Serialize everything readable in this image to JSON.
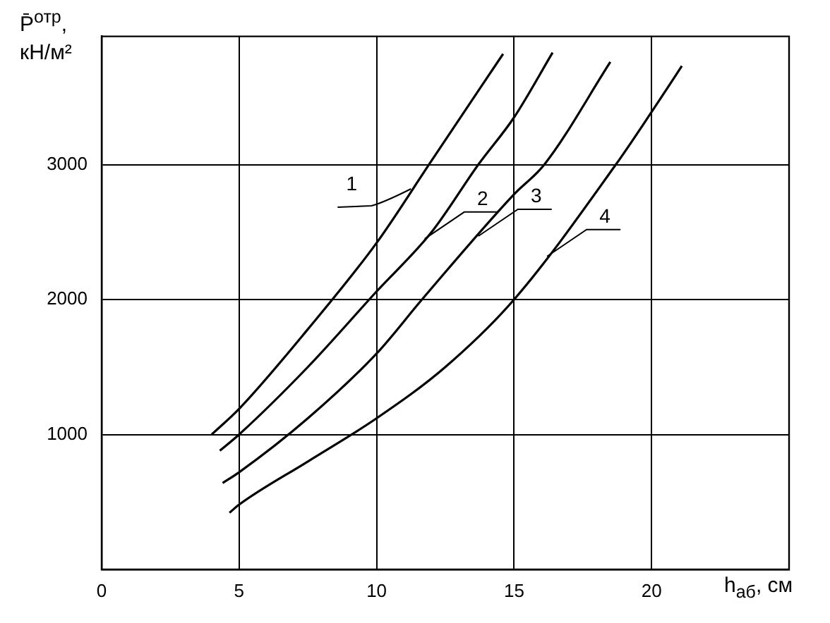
{
  "chart_data": {
    "type": "line",
    "xlabel": "h$_{аб}$, см",
    "ylabel": "P̄$^{отр}$, кН/м²",
    "xlim": [
      0,
      25
    ],
    "xticks": [
      0,
      5,
      10,
      15,
      20
    ],
    "ylim": [
      0,
      3950
    ],
    "yticks": [
      1000,
      2000,
      3000
    ],
    "grid": true,
    "legend": false,
    "marker": "none",
    "line_style": "solid",
    "series": [
      {
        "color": "#000000",
        "x": [
          4.0,
          5,
          7.5,
          10,
          12,
          14.6
        ],
        "values": [
          1000,
          1190,
          1780,
          2420,
          3030,
          3820
        ]
      },
      {
        "color": "#000000",
        "x": [
          4.3,
          5,
          7.5,
          10,
          12,
          13.7,
          15,
          16.4
        ],
        "values": [
          880,
          1000,
          1500,
          2060,
          2500,
          3000,
          3350,
          3830
        ]
      },
      {
        "color": "#000000",
        "x": [
          4.4,
          5,
          7.5,
          10,
          11.65,
          15,
          16.1,
          18.5
        ],
        "values": [
          640,
          720,
          1120,
          1600,
          2000,
          2780,
          3000,
          3760
        ]
      },
      {
        "color": "#000000",
        "x": [
          4.65,
          5,
          7.5,
          10,
          12.5,
          15,
          18.7,
          20,
          21.1
        ],
        "values": [
          420,
          480,
          800,
          1120,
          1500,
          2000,
          3000,
          3390,
          3730
        ]
      }
    ],
    "annotations": [
      {
        "text": "1",
        "x": 11.25,
        "y": 2820
      },
      {
        "text": "2",
        "x": 11.75,
        "y": 2450
      },
      {
        "text": "3",
        "x": 13.7,
        "y": 2470
      },
      {
        "text": "4",
        "x": 16.2,
        "y": 2320
      }
    ]
  }
}
